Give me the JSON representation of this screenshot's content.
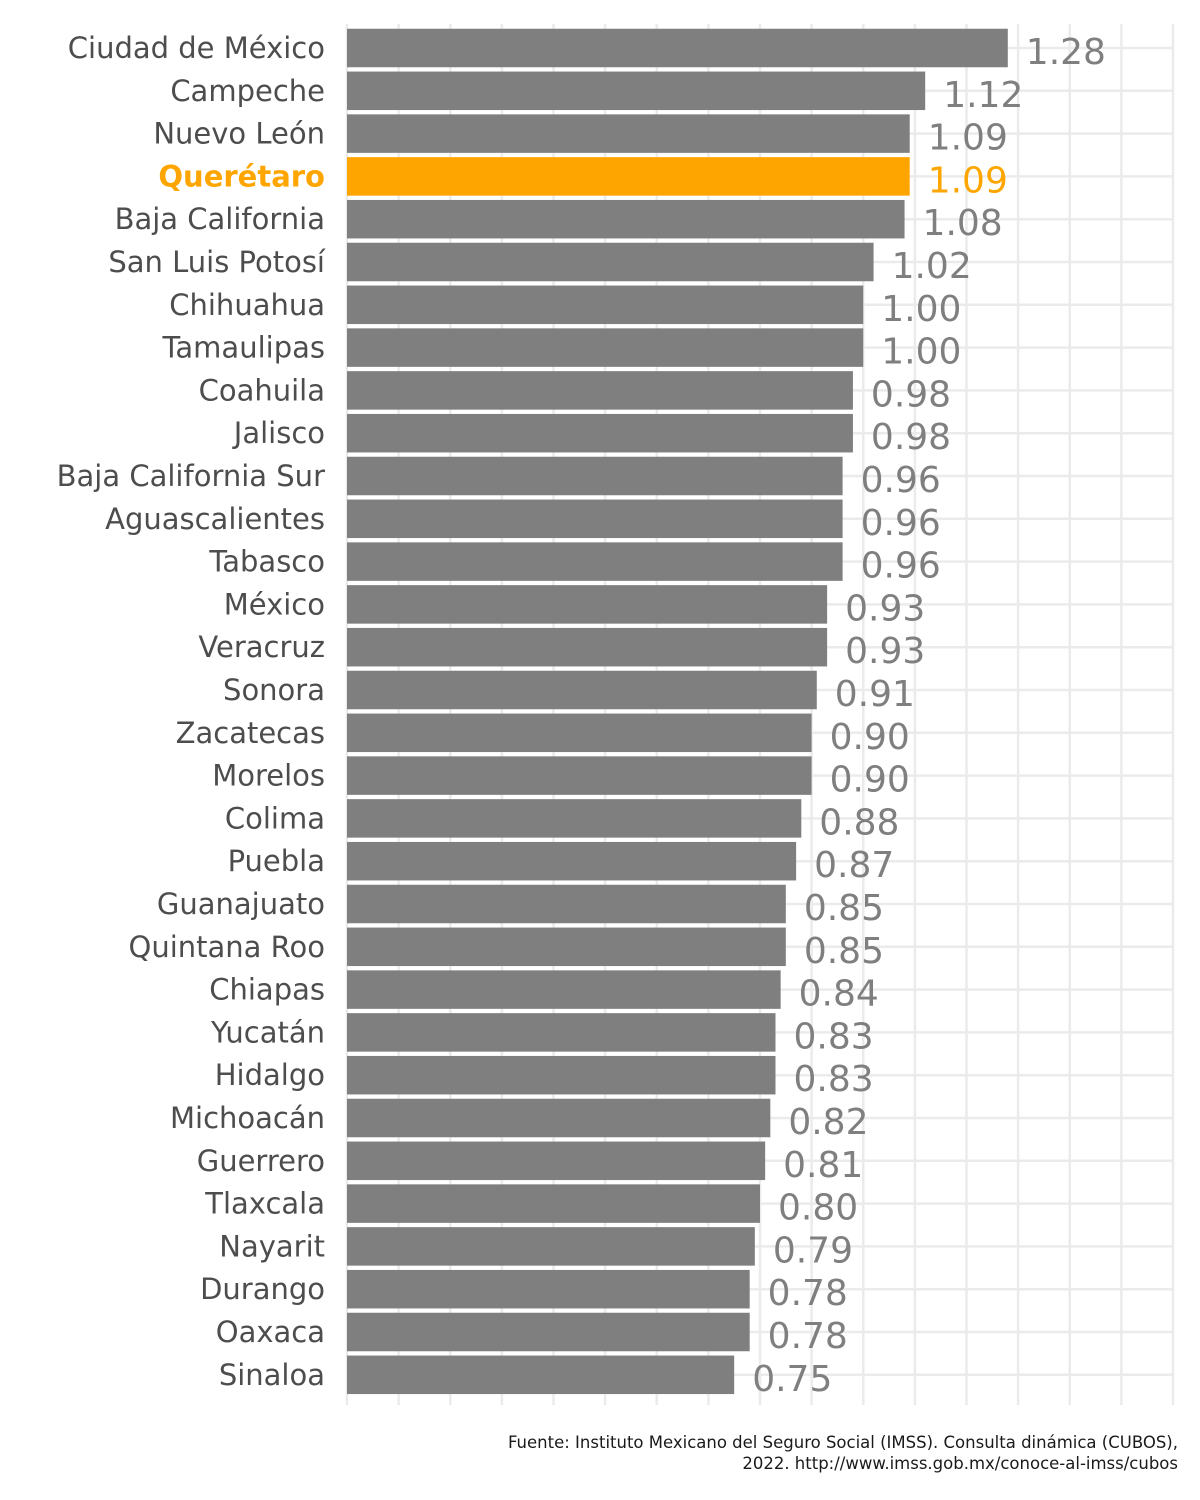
{
  "chart_data": {
    "type": "bar",
    "orientation": "horizontal",
    "categories": [
      "Ciudad de México",
      "Campeche",
      "Nuevo León",
      "Querétaro",
      "Baja California",
      "San Luis Potosí",
      "Chihuahua",
      "Tamaulipas",
      "Coahuila",
      "Jalisco",
      "Baja California Sur",
      "Aguascalientes",
      "Tabasco",
      "México",
      "Veracruz",
      "Sonora",
      "Zacatecas",
      "Morelos",
      "Colima",
      "Puebla",
      "Guanajuato",
      "Quintana Roo",
      "Chiapas",
      "Yucatán",
      "Hidalgo",
      "Michoacán",
      "Guerrero",
      "Tlaxcala",
      "Nayarit",
      "Durango",
      "Oaxaca",
      "Sinaloa"
    ],
    "values": [
      1.28,
      1.12,
      1.09,
      1.09,
      1.08,
      1.02,
      1.0,
      1.0,
      0.98,
      0.98,
      0.96,
      0.96,
      0.96,
      0.93,
      0.93,
      0.91,
      0.9,
      0.9,
      0.88,
      0.87,
      0.85,
      0.85,
      0.84,
      0.83,
      0.83,
      0.82,
      0.81,
      0.8,
      0.79,
      0.78,
      0.78,
      0.75
    ],
    "value_labels": [
      "1.28",
      "1.12",
      "1.09",
      "1.09",
      "1.08",
      "1.02",
      "1.00",
      "1.00",
      "0.98",
      "0.98",
      "0.96",
      "0.96",
      "0.96",
      "0.93",
      "0.93",
      "0.91",
      "0.90",
      "0.90",
      "0.88",
      "0.87",
      "0.85",
      "0.85",
      "0.84",
      "0.83",
      "0.83",
      "0.82",
      "0.81",
      "0.80",
      "0.79",
      "0.78",
      "0.78",
      "0.75"
    ],
    "highlight": "Querétaro",
    "xlim": [
      0,
      1.6
    ],
    "grid": true,
    "x_tick_labels_shown": false,
    "colors": {
      "bar": "#7f7f7f",
      "highlight": "#ffa500",
      "category_text": "#4d4d4d",
      "value_text": "#7f7f7f"
    }
  },
  "caption": {
    "line1": "Fuente: Instituto Mexicano del Seguro Social (IMSS). Consulta dinámica (CUBOS),",
    "line2": "2022. http://www.imss.gob.mx/conoce-al-imss/cubos"
  }
}
